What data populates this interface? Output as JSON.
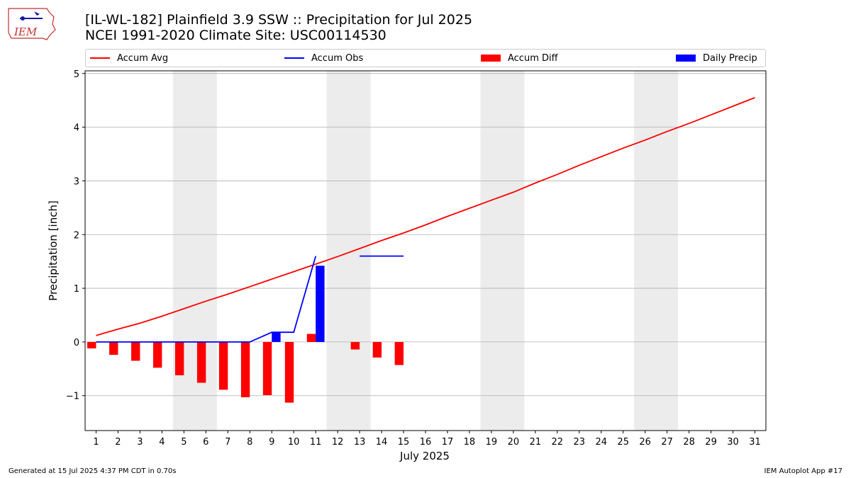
{
  "logo": {
    "text": "IEM"
  },
  "header": {
    "title_line1": "[IL-WL-182] Plainfield 3.9 SSW :: Precipitation for Jul 2025",
    "title_line2": "NCEI 1991-2020 Climate Site: USC00114530"
  },
  "legend": {
    "items": [
      {
        "label": "Accum Avg",
        "color": "#ff0000",
        "kind": "line"
      },
      {
        "label": "Accum Obs",
        "color": "#0000ff",
        "kind": "line"
      },
      {
        "label": "Accum Diff",
        "color": "#ff0000",
        "kind": "patch"
      },
      {
        "label": "Daily Precip",
        "color": "#0000ff",
        "kind": "patch"
      }
    ]
  },
  "footer": {
    "generated": "Generated at 15 Jul 2025 4:37 PM CDT in 0.70s",
    "app": "IEM Autoplot App #17"
  },
  "chart_data": {
    "type": "bar",
    "xlabel": "July 2025",
    "ylabel": "Precipitation [inch]",
    "xlim": [
      0.5,
      31.5
    ],
    "ylim": [
      -1.65,
      5.05
    ],
    "yticks": [
      -1,
      0,
      1,
      2,
      3,
      4,
      5
    ],
    "ytick_labels": [
      "−1",
      "0",
      "1",
      "2",
      "3",
      "4",
      "5"
    ],
    "x": [
      1,
      2,
      3,
      4,
      5,
      6,
      7,
      8,
      9,
      10,
      11,
      12,
      13,
      14,
      15,
      16,
      17,
      18,
      19,
      20,
      21,
      22,
      23,
      24,
      25,
      26,
      27,
      28,
      29,
      30,
      31
    ],
    "grid": "horizontal",
    "weekend_shading": [
      [
        4.5,
        6.5
      ],
      [
        11.5,
        13.5
      ],
      [
        18.5,
        20.5
      ],
      [
        25.5,
        27.5
      ]
    ],
    "series": [
      {
        "name": "Accum Avg",
        "kind": "line",
        "color": "#ff0000",
        "x": [
          1,
          2,
          3,
          4,
          5,
          6,
          7,
          8,
          9,
          10,
          11,
          12,
          13,
          14,
          15,
          16,
          17,
          18,
          19,
          20,
          21,
          22,
          23,
          24,
          25,
          26,
          27,
          28,
          29,
          30,
          31
        ],
        "values": [
          0.12,
          0.24,
          0.35,
          0.48,
          0.62,
          0.76,
          0.89,
          1.03,
          1.17,
          1.31,
          1.45,
          1.59,
          1.74,
          1.89,
          2.03,
          2.18,
          2.34,
          2.49,
          2.64,
          2.79,
          2.96,
          3.12,
          3.29,
          3.45,
          3.61,
          3.76,
          3.92,
          4.07,
          4.23,
          4.39,
          4.55
        ]
      },
      {
        "name": "Accum Obs",
        "kind": "line",
        "color": "#0000ff",
        "x": [
          1,
          2,
          3,
          4,
          5,
          6,
          7,
          8,
          9,
          10,
          11,
          13,
          14,
          15
        ],
        "values": [
          0,
          0,
          0,
          0,
          0,
          0,
          0,
          0,
          0.18,
          0.18,
          1.6,
          1.6,
          1.6,
          1.6
        ]
      },
      {
        "name": "Accum Diff",
        "kind": "bar",
        "color": "#ff0000",
        "x": [
          1,
          2,
          3,
          4,
          5,
          6,
          7,
          8,
          9,
          10,
          11,
          13,
          14,
          15
        ],
        "values": [
          -0.12,
          -0.24,
          -0.35,
          -0.48,
          -0.62,
          -0.76,
          -0.89,
          -1.03,
          -0.99,
          -1.13,
          0.15,
          -0.14,
          -0.29,
          -0.43
        ]
      },
      {
        "name": "Daily Precip",
        "kind": "bar",
        "color": "#0000ff",
        "x": [
          9,
          11
        ],
        "values": [
          0.18,
          1.42
        ]
      }
    ]
  }
}
